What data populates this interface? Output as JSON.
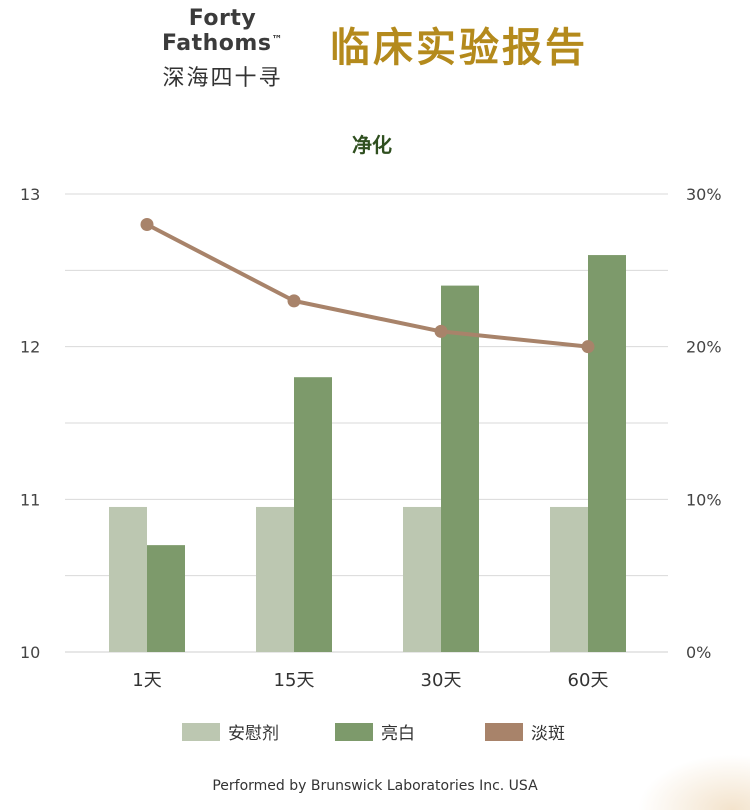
{
  "header": {
    "brand_en": "Forty Fathoms",
    "brand_tm": "™",
    "brand_zh": "深海四十寻",
    "report_title": "临床实验报告"
  },
  "colors": {
    "placebo": "#bcc7b1",
    "brightening": "#7d9a6b",
    "spot_fading": "#a8836a",
    "title_gold": "#b48a1c",
    "chart_title": "#2f4f1f",
    "grid": "#d9d9d9"
  },
  "chart_data": {
    "type": "bar",
    "title": "净化",
    "categories": [
      "1天",
      "15天",
      "30天",
      "60天"
    ],
    "y_left": {
      "min": 10,
      "max": 13,
      "ticks": [
        "10",
        "11",
        "12",
        "13"
      ]
    },
    "y_right": {
      "min": 0,
      "max": 30,
      "ticks": [
        "0%",
        "10%",
        "20%",
        "30%"
      ]
    },
    "series": [
      {
        "name": "安慰剂",
        "type": "bar",
        "axis": "left",
        "color": "#bcc7b1",
        "values": [
          10.95,
          10.95,
          10.95,
          10.95
        ]
      },
      {
        "name": "亮白",
        "type": "bar",
        "axis": "left",
        "color": "#7d9a6b",
        "values": [
          10.7,
          11.8,
          12.4,
          12.6
        ]
      },
      {
        "name": "淡斑",
        "type": "line",
        "axis": "right",
        "color": "#a8836a",
        "values": [
          28,
          23,
          21,
          20
        ]
      }
    ],
    "grid": true,
    "legend": "bottom"
  },
  "footer": {
    "credit": "Performed by Brunswick Laboratories Inc. USA"
  }
}
